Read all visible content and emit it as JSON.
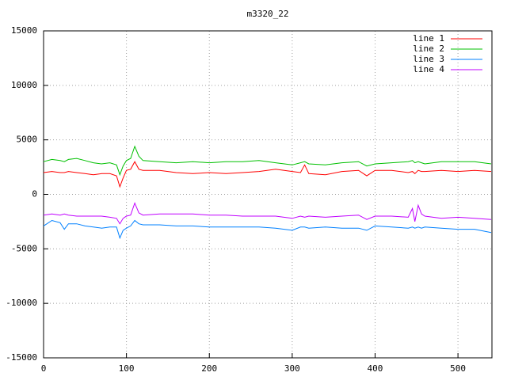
{
  "chart_data": {
    "type": "line",
    "title": "m3320_22",
    "x": [
      0,
      10,
      20,
      25,
      30,
      40,
      50,
      60,
      70,
      80,
      88,
      92,
      96,
      100,
      105,
      110,
      115,
      120,
      140,
      160,
      180,
      200,
      220,
      240,
      260,
      280,
      300,
      310,
      315,
      320,
      340,
      360,
      380,
      390,
      400,
      420,
      440,
      445,
      448,
      452,
      456,
      460,
      480,
      500,
      520,
      540
    ],
    "series": [
      {
        "name": "line 1",
        "color": "#ff0000",
        "values": [
          2000,
          2100,
          2000,
          2000,
          2100,
          2000,
          1900,
          1800,
          1900,
          1900,
          1700,
          700,
          1500,
          2200,
          2300,
          3000,
          2300,
          2200,
          2200,
          2000,
          1900,
          2000,
          1900,
          2000,
          2100,
          2300,
          2100,
          2000,
          2700,
          1900,
          1800,
          2100,
          2200,
          1700,
          2200,
          2200,
          2000,
          2100,
          1900,
          2200,
          2100,
          2100,
          2200,
          2100,
          2200,
          2100
        ]
      },
      {
        "name": "line 2",
        "color": "#00c000",
        "values": [
          3000,
          3200,
          3100,
          3000,
          3200,
          3300,
          3100,
          2900,
          2800,
          2900,
          2700,
          1800,
          2600,
          3100,
          3300,
          4400,
          3500,
          3100,
          3000,
          2900,
          3000,
          2900,
          3000,
          3000,
          3100,
          2900,
          2700,
          2900,
          3000,
          2800,
          2700,
          2900,
          3000,
          2600,
          2800,
          2900,
          3000,
          3100,
          2900,
          3000,
          2900,
          2800,
          3000,
          3000,
          3000,
          2800
        ]
      },
      {
        "name": "line 3",
        "color": "#0080ff",
        "values": [
          -2900,
          -2400,
          -2600,
          -3200,
          -2700,
          -2700,
          -2900,
          -3000,
          -3100,
          -3000,
          -3000,
          -4000,
          -3300,
          -3100,
          -2900,
          -2400,
          -2700,
          -2800,
          -2800,
          -2900,
          -2900,
          -3000,
          -3000,
          -3000,
          -3000,
          -3100,
          -3300,
          -3000,
          -3000,
          -3100,
          -3000,
          -3100,
          -3100,
          -3300,
          -2900,
          -3000,
          -3100,
          -3000,
          -3100,
          -3000,
          -3100,
          -3000,
          -3100,
          -3200,
          -3200,
          -3500
        ]
      },
      {
        "name": "line 4",
        "color": "#c000ff",
        "values": [
          -1900,
          -1800,
          -1900,
          -1800,
          -1900,
          -2000,
          -2000,
          -2000,
          -2000,
          -2100,
          -2200,
          -2700,
          -2200,
          -2000,
          -1900,
          -800,
          -1700,
          -1900,
          -1800,
          -1800,
          -1800,
          -1900,
          -1900,
          -2000,
          -2000,
          -2000,
          -2200,
          -2000,
          -2100,
          -2000,
          -2100,
          -2000,
          -1900,
          -2300,
          -2000,
          -2000,
          -2100,
          -1300,
          -2500,
          -1000,
          -1800,
          -2000,
          -2200,
          -2100,
          -2200,
          -2300
        ]
      }
    ],
    "xlim": [
      0,
      541
    ],
    "xticks": [
      0,
      100,
      200,
      300,
      400,
      500
    ],
    "ylim": [
      -15000,
      15000
    ],
    "yticks": [
      -15000,
      -10000,
      -5000,
      0,
      5000,
      10000,
      15000
    ],
    "grid": true,
    "legend": "top-right"
  }
}
